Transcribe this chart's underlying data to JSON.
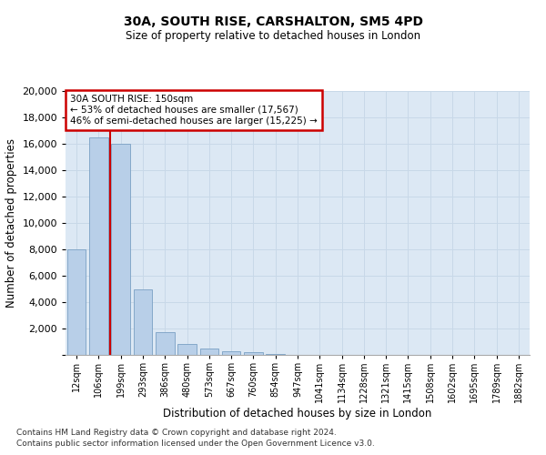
{
  "title1": "30A, SOUTH RISE, CARSHALTON, SM5 4PD",
  "title2": "Size of property relative to detached houses in London",
  "xlabel": "Distribution of detached houses by size in London",
  "ylabel": "Number of detached properties",
  "categories": [
    "12sqm",
    "106sqm",
    "199sqm",
    "293sqm",
    "386sqm",
    "480sqm",
    "573sqm",
    "667sqm",
    "760sqm",
    "854sqm",
    "947sqm",
    "1041sqm",
    "1134sqm",
    "1228sqm",
    "1321sqm",
    "1415sqm",
    "1508sqm",
    "1602sqm",
    "1695sqm",
    "1789sqm",
    "1882sqm"
  ],
  "values": [
    8000,
    16500,
    16000,
    5000,
    1700,
    800,
    500,
    300,
    200,
    50,
    0,
    0,
    0,
    0,
    0,
    0,
    0,
    0,
    0,
    0,
    0
  ],
  "bar_color": "#b8cfe8",
  "bar_edge_color": "#7aa0c4",
  "red_line_x": 1.5,
  "annotation_line1": "30A SOUTH RISE: 150sqm",
  "annotation_line2": "← 53% of detached houses are smaller (17,567)",
  "annotation_line3": "46% of semi-detached houses are larger (15,225) →",
  "annotation_box_facecolor": "#ffffff",
  "annotation_box_edgecolor": "#cc0000",
  "red_line_color": "#cc0000",
  "grid_color": "#c8d8e8",
  "background_color": "#dce8f4",
  "ylim": [
    0,
    20000
  ],
  "yticks": [
    0,
    2000,
    4000,
    6000,
    8000,
    10000,
    12000,
    14000,
    16000,
    18000,
    20000
  ],
  "footer1": "Contains HM Land Registry data © Crown copyright and database right 2024.",
  "footer2": "Contains public sector information licensed under the Open Government Licence v3.0."
}
